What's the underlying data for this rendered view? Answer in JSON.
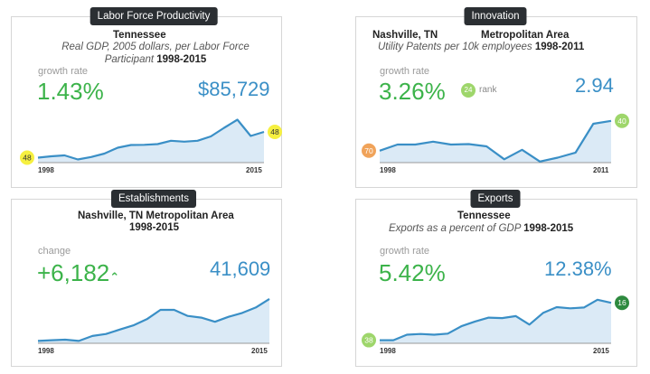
{
  "colors": {
    "line": "#3a8fc6",
    "fill": "#dbeaf6",
    "green": "#3cb34a",
    "blue": "#3a8fc6",
    "badge_yellow": "#f6f040",
    "badge_orange": "#f0a35a",
    "badge_lightgreen": "#9ed66b",
    "badge_darkgreen": "#2e8a3f"
  },
  "cards": {
    "productivity": {
      "tab": "Labor Force Productivity",
      "title": "Tennessee",
      "subtitle_line1": "Real GDP, 2005 dollars, per Labor Force",
      "subtitle_line2": "Participant",
      "years": "1998-2015",
      "metric_label": "growth rate",
      "metric_value": "1.43%",
      "secondary_value": "$85,729",
      "start_year": "1998",
      "end_year": "2015",
      "start_badge": "48",
      "end_badge": "48"
    },
    "innovation": {
      "tab": "Innovation",
      "title_left": "Nashville, TN",
      "title_right": "Metropolitan Area",
      "subtitle": "Utility Patents per 10k employees",
      "years": "1998-2011",
      "metric_label": "growth rate",
      "metric_value": "3.26%",
      "rank_badge": "24",
      "rank_label": "rank",
      "secondary_value": "2.94",
      "start_year": "1998",
      "end_year": "2011",
      "start_badge": "70",
      "end_badge": "40"
    },
    "establishments": {
      "tab": "Establishments",
      "title": "Nashville, TN Metropolitan Area",
      "years": "1998-2015",
      "metric_label": "change",
      "metric_value": "+6,182",
      "arrow": "⌃",
      "secondary_value": "41,609",
      "start_year": "1998",
      "end_year": "2015"
    },
    "exports": {
      "tab": "Exports",
      "title": "Tennessee",
      "subtitle": "Exports as a percent of GDP",
      "years": "1998-2015",
      "metric_label": "growth rate",
      "metric_value": "5.42%",
      "secondary_value": "12.38%",
      "start_year": "1998",
      "end_year": "2015",
      "start_badge": "38",
      "end_badge": "16"
    }
  },
  "chart_data": [
    {
      "type": "area",
      "name": "productivity",
      "x": [
        1998,
        1999,
        2000,
        2001,
        2002,
        2003,
        2004,
        2005,
        2006,
        2007,
        2008,
        2009,
        2010,
        2011,
        2012,
        2013,
        2014,
        2015
      ],
      "values": [
        0.22,
        0.28,
        0.32,
        0.14,
        0.25,
        0.4,
        0.66,
        0.78,
        0.79,
        0.82,
        0.97,
        0.93,
        0.97,
        1.16,
        1.54,
        1.9,
        1.18,
        1.36
      ],
      "ylim": [
        0,
        2.4
      ]
    },
    {
      "type": "area",
      "name": "innovation",
      "x": [
        1998,
        1999,
        2000,
        2001,
        2002,
        2003,
        2004,
        2005,
        2006,
        2007,
        2008,
        2009,
        2010,
        2011
      ],
      "values": [
        0.53,
        0.8,
        0.8,
        0.93,
        0.8,
        0.82,
        0.72,
        0.15,
        0.57,
        0.05,
        0.22,
        0.44,
        1.72,
        1.85
      ],
      "ylim": [
        0,
        2.4
      ]
    },
    {
      "type": "area",
      "name": "establishments",
      "x": [
        1998,
        1999,
        2000,
        2001,
        2002,
        2003,
        2004,
        2005,
        2006,
        2007,
        2008,
        2009,
        2010,
        2011,
        2012,
        2013,
        2014,
        2015
      ],
      "values": [
        0.15,
        0.2,
        0.23,
        0.15,
        0.47,
        0.6,
        0.88,
        1.15,
        1.55,
        2.15,
        2.15,
        1.76,
        1.65,
        1.38,
        1.7,
        1.95,
        2.3,
        2.85
      ],
      "ylim": [
        0,
        3.6
      ]
    },
    {
      "type": "area",
      "name": "exports",
      "x": [
        1998,
        1999,
        2000,
        2001,
        2002,
        2003,
        2004,
        2005,
        2006,
        2007,
        2008,
        2009,
        2010,
        2011,
        2012,
        2013,
        2014,
        2015
      ],
      "values": [
        0.2,
        0.2,
        0.55,
        0.6,
        0.55,
        0.62,
        1.1,
        1.4,
        1.65,
        1.62,
        1.75,
        1.2,
        1.95,
        2.32,
        2.25,
        2.3,
        2.8,
        2.6
      ],
      "ylim": [
        0,
        3.6
      ]
    }
  ]
}
